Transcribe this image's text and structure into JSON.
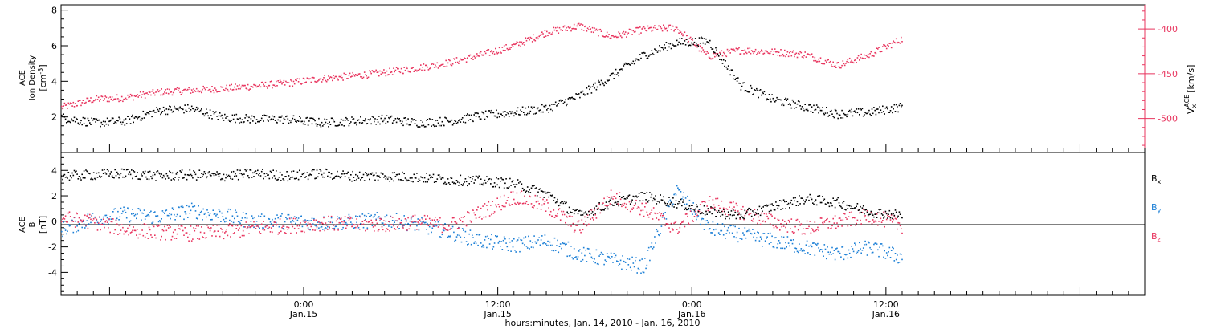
{
  "colors": {
    "density": "#000000",
    "velocity": "#e8345e",
    "bx": "#000000",
    "by": "#1c7fd6",
    "bz": "#e8345e",
    "axis": "#000000"
  },
  "chart_data": {
    "type": "scatter",
    "xlabel": "hours:minutes, Jan. 14, 2010 - Jan. 16, 2010",
    "xlim_hours": [
      -15,
      52
    ],
    "xticks": [
      {
        "hours": 0,
        "time": "0:00",
        "date": "Jan.15"
      },
      {
        "hours": 12,
        "time": "12:00",
        "date": "Jan.15"
      },
      {
        "hours": 24,
        "time": "0:00",
        "date": "Jan.16"
      },
      {
        "hours": 36,
        "time": "12:00",
        "date": "Jan.16"
      }
    ],
    "panels": [
      {
        "name": "top",
        "ylabel_lines": [
          "ACE",
          "Ion Density"
        ],
        "ylabel_unit": "[cm",
        "ylabel_unit_sup": "-3",
        "ylabel_unit_end": "]",
        "ylim": [
          0,
          8.3
        ],
        "yticks": [
          2,
          4,
          6,
          8
        ],
        "y2label": {
          "main": "V",
          "sub": "x",
          "sup": "ACE",
          "unit": "[km/s]"
        },
        "y2lim": [
          -538,
          -373
        ],
        "y2ticks": [
          -400,
          -450,
          -500
        ],
        "series": [
          {
            "key": "density",
            "axis": "left",
            "x": [
              -15,
              -13,
              -11,
              -9,
              -7,
              -5,
              -3,
              -1,
              1,
              3,
              5,
              7,
              9,
              11,
              13,
              15,
              17,
              19,
              21,
              23,
              25,
              27,
              29,
              31,
              33,
              35,
              37
            ],
            "y": [
              2.0,
              1.7,
              1.8,
              2.4,
              2.5,
              2.0,
              1.9,
              1.9,
              1.7,
              1.8,
              1.9,
              1.7,
              1.8,
              2.1,
              2.3,
              2.5,
              3.2,
              4.3,
              5.5,
              6.2,
              6.3,
              3.8,
              3.0,
              2.6,
              2.2,
              2.3,
              2.6
            ]
          },
          {
            "key": "velocity",
            "axis": "right",
            "x": [
              -15,
              -13,
              -11,
              -9,
              -7,
              -5,
              -3,
              -1,
              1,
              3,
              5,
              7,
              9,
              11,
              13,
              15,
              17,
              19,
              21,
              23,
              25,
              27,
              29,
              31,
              33,
              35,
              37
            ],
            "y": [
              -487,
              -478,
              -476,
              -470,
              -468,
              -466,
              -463,
              -460,
              -455,
              -452,
              -448,
              -443,
              -437,
              -428,
              -418,
              -403,
              -396,
              -408,
              -400,
              -398,
              -430,
              -423,
              -425,
              -428,
              -440,
              -428,
              -410
            ]
          }
        ]
      },
      {
        "name": "bottom",
        "ylabel_lines": [
          "ACE",
          "B"
        ],
        "ylabel_unit": "[nT]",
        "ylim": [
          -5.8,
          5.4
        ],
        "yticks": [
          4,
          2,
          0,
          -2,
          -4
        ],
        "legend": [
          {
            "key": "bx",
            "main": "B",
            "sub": "x"
          },
          {
            "key": "by",
            "main": "B",
            "sub": "y"
          },
          {
            "key": "bz",
            "main": "B",
            "sub": "z"
          }
        ],
        "series": [
          {
            "key": "bx",
            "x": [
              -15,
              -13,
              -11,
              -9,
              -7,
              -5,
              -3,
              -1,
              1,
              3,
              5,
              7,
              9,
              11,
              13,
              15,
              17,
              19,
              21,
              23,
              25,
              27,
              29,
              31,
              33,
              35,
              37
            ],
            "y": [
              3.6,
              3.7,
              3.8,
              3.6,
              3.7,
              3.6,
              3.8,
              3.6,
              3.8,
              3.6,
              3.6,
              3.5,
              3.3,
              3.2,
              3.0,
              2.2,
              0.5,
              1.5,
              2.0,
              1.5,
              0.8,
              0.5,
              1.2,
              1.8,
              1.5,
              0.8,
              0.5
            ]
          },
          {
            "key": "by",
            "x": [
              -15,
              -13,
              -11,
              -9,
              -7,
              -5,
              -3,
              -1,
              1,
              3,
              5,
              7,
              9,
              11,
              13,
              15,
              17,
              19,
              21,
              23,
              25,
              27,
              29,
              31,
              33,
              35,
              37
            ],
            "y": [
              -0.6,
              0.3,
              0.6,
              0.4,
              0.9,
              0.5,
              0.0,
              0.1,
              -0.1,
              0.0,
              0.2,
              -0.2,
              -0.8,
              -1.5,
              -1.8,
              -1.5,
              -2.5,
              -3.0,
              -3.5,
              2.5,
              -0.5,
              -1.0,
              -1.5,
              -2.0,
              -2.5,
              -2.0,
              -2.8
            ]
          },
          {
            "key": "bz",
            "x": [
              -15,
              -13,
              -11,
              -9,
              -7,
              -5,
              -3,
              -1,
              1,
              3,
              5,
              7,
              9,
              11,
              13,
              15,
              17,
              19,
              21,
              23,
              25,
              27,
              29,
              31,
              33,
              35,
              37
            ],
            "y": [
              0.3,
              0.0,
              -0.6,
              -0.8,
              -0.9,
              -0.8,
              -0.5,
              -0.3,
              -0.1,
              -0.2,
              -0.2,
              0.0,
              -0.3,
              0.8,
              2.0,
              1.2,
              -0.5,
              2.0,
              1.0,
              -0.5,
              1.5,
              0.8,
              0.0,
              -0.5,
              0.0,
              0.5,
              -0.3
            ]
          }
        ]
      }
    ]
  }
}
